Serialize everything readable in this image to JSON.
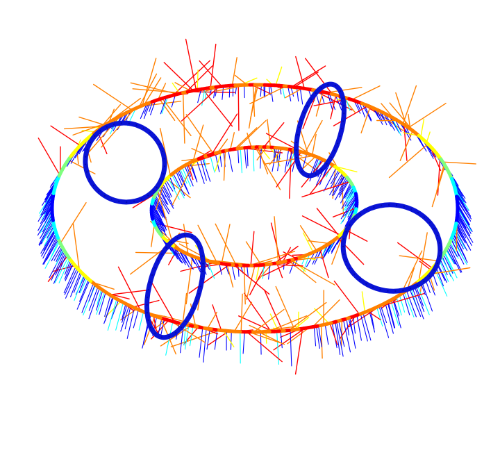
{
  "figure": {
    "background": "#ffffff",
    "subject": "torus-vector-field",
    "colormap": [
      "#00008f",
      "#0000ff",
      "#00ffff",
      "#7fff7f",
      "#ffff00",
      "#ff8000",
      "#ff0000",
      "#800000"
    ],
    "cross_section_ring_color": "#0a14d6",
    "cross_section_ring_count": 4
  }
}
